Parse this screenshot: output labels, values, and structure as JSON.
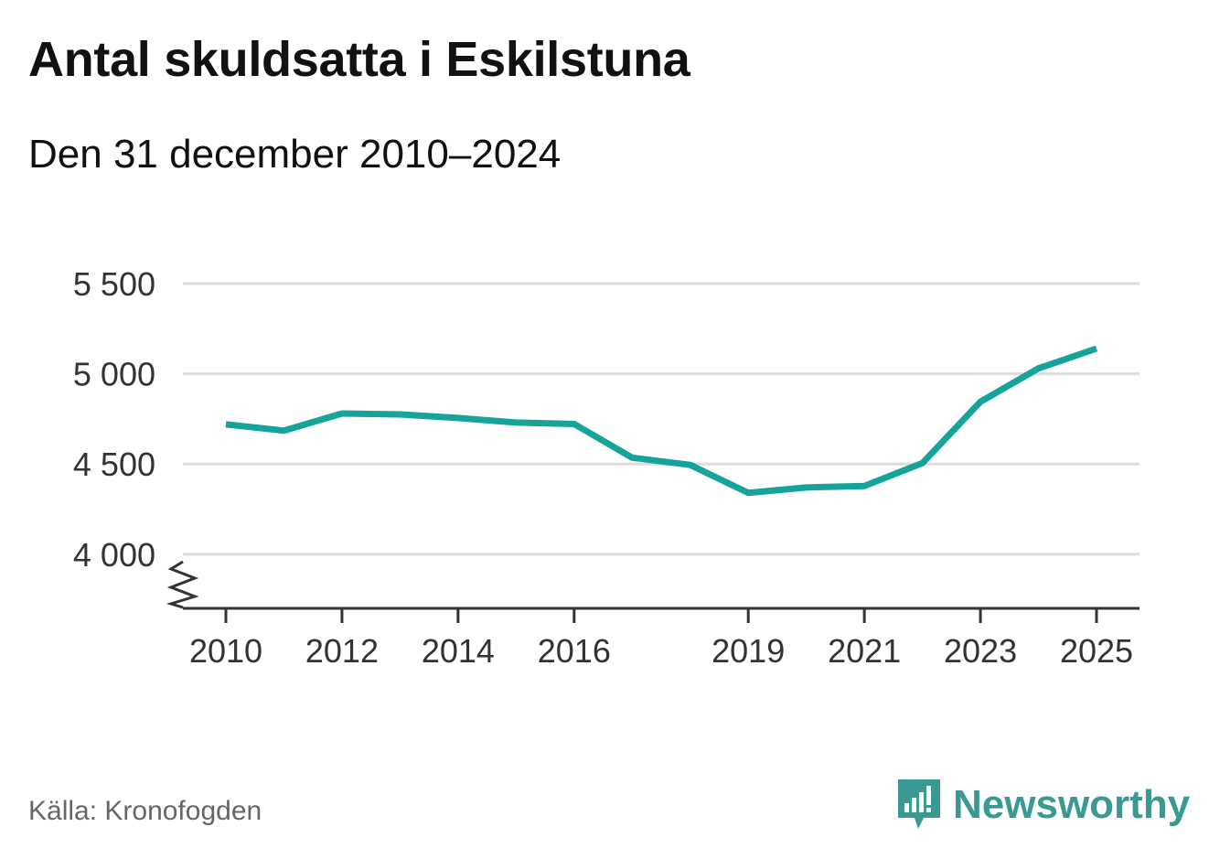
{
  "title": "Antal skuldsatta i Eskilstuna",
  "subtitle": "Den 31 december 2010–2024",
  "source": "Källa: Kronofogden",
  "brand": {
    "name": "Newsworthy",
    "icon": "newsworthy-logo-icon",
    "color": "#3a9a93"
  },
  "colors": {
    "line": "#15a39a",
    "grid": "#dddddd",
    "axis": "#333333"
  },
  "chart_data": {
    "type": "line",
    "title": "Antal skuldsatta i Eskilstuna",
    "subtitle": "Den 31 december 2010–2024",
    "xlabel": "",
    "ylabel": "",
    "x": [
      2010,
      2011,
      2012,
      2013,
      2014,
      2015,
      2016,
      2017,
      2018,
      2019,
      2020,
      2021,
      2022,
      2023,
      2024,
      2025
    ],
    "series": [
      {
        "values": [
          4720,
          4685,
          4780,
          4775,
          4755,
          4730,
          4722,
          4535,
          4495,
          4340,
          4370,
          4378,
          4505,
          4845,
          5030,
          5140
        ]
      }
    ],
    "xticks": [
      2010,
      2012,
      2014,
      2016,
      2019,
      2021,
      2023,
      2025
    ],
    "xtick_labels": [
      "2010",
      "2012",
      "2014",
      "2016",
      "2019",
      "2021",
      "2023",
      "2025"
    ],
    "yticks": [
      4000,
      4500,
      5000,
      5500
    ],
    "ytick_labels": [
      "4 000",
      "4 500",
      "5 000",
      "5 500"
    ],
    "ylim": [
      3700,
      5500
    ],
    "xlim": [
      2010,
      2025
    ],
    "y_axis_break": true,
    "grid": true,
    "legend": "none"
  }
}
